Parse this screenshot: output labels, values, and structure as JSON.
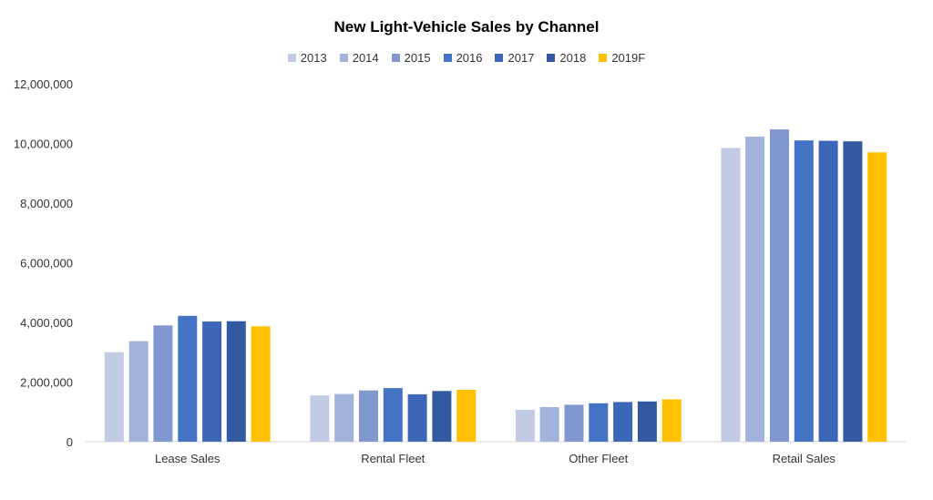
{
  "chart_data": {
    "type": "bar",
    "title": "New Light-Vehicle Sales by Channel",
    "categories": [
      "Lease Sales",
      "Rental Fleet",
      "Other Fleet",
      "Retail Sales"
    ],
    "series": [
      {
        "name": "2013",
        "color": "#c2cbe4",
        "values": [
          3000000,
          1550000,
          1070000,
          9850000
        ]
      },
      {
        "name": "2014",
        "color": "#a3b2da",
        "values": [
          3370000,
          1600000,
          1160000,
          10230000
        ]
      },
      {
        "name": "2015",
        "color": "#8097d0",
        "values": [
          3900000,
          1720000,
          1240000,
          10470000
        ]
      },
      {
        "name": "2016",
        "color": "#4472c4",
        "values": [
          4220000,
          1800000,
          1290000,
          10100000
        ]
      },
      {
        "name": "2017",
        "color": "#3c67b8",
        "values": [
          4030000,
          1590000,
          1330000,
          10090000
        ]
      },
      {
        "name": "2018",
        "color": "#335aa0",
        "values": [
          4040000,
          1700000,
          1350000,
          10070000
        ]
      },
      {
        "name": "2019F",
        "color": "#ffc000",
        "values": [
          3870000,
          1740000,
          1420000,
          9700000
        ]
      }
    ],
    "ylim": [
      0,
      12000000
    ],
    "yticks": [
      "0",
      "2,000,000",
      "4,000,000",
      "6,000,000",
      "8,000,000",
      "10,000,000",
      "12,000,000"
    ],
    "ytick_values": [
      0,
      2000000,
      4000000,
      6000000,
      8000000,
      10000000,
      12000000
    ],
    "xlabel": "",
    "ylabel": "",
    "grid": false,
    "legend_position": "top"
  }
}
